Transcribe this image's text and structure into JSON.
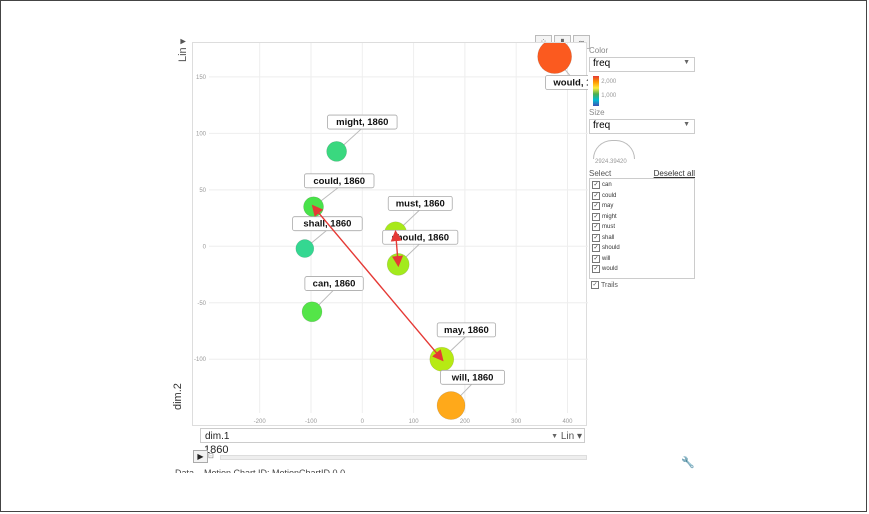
{
  "y_axis": {
    "label": "dim.2",
    "scale_label": "Lin",
    "ticks": [
      "150",
      "100",
      "50",
      "0",
      "-50",
      "-100"
    ]
  },
  "x_axis": {
    "label": "dim.1",
    "scale_label": "Lin",
    "ticks": [
      "-200",
      "-100",
      "0",
      "100",
      "200",
      "300",
      "400"
    ]
  },
  "time": {
    "year": "1860"
  },
  "chart_icons": [
    "scatter-icon",
    "bar-icon",
    "line-icon"
  ],
  "sidebar": {
    "color_header": "Color",
    "color_value": "freq",
    "color_scale": [
      "2,000",
      "1,000"
    ],
    "size_header": "Size",
    "size_value": "freq",
    "size_value_label": "2924.39420",
    "select_header": "Select",
    "deselect_all": "Deselect all",
    "items": [
      "can",
      "could",
      "may",
      "might",
      "must",
      "shall",
      "should",
      "will",
      "would"
    ],
    "trails_label": "Trails"
  },
  "bottom_text": "Data... Motion Chart ID: MotionChartID.0.0",
  "chart_data": {
    "type": "scatter",
    "xlabel": "dim.1",
    "ylabel": "dim.2",
    "year": "1860",
    "points": [
      {
        "label": "would, 1860",
        "x": 375,
        "y": 168,
        "freq": 2000,
        "color": "#fb5a1f",
        "r": 17
      },
      {
        "label": "might, 1860",
        "x": -50,
        "y": 84,
        "freq": 700,
        "color": "#3ad87f",
        "r": 10
      },
      {
        "label": "could, 1860",
        "x": -95,
        "y": 35,
        "freq": 850,
        "color": "#49e24a",
        "r": 10
      },
      {
        "label": "must, 1860",
        "x": 65,
        "y": 12,
        "freq": 1050,
        "color": "#a8e91a",
        "r": 11
      },
      {
        "label": "shall, 1860",
        "x": -112,
        "y": -2,
        "freq": 650,
        "color": "#34d791",
        "r": 9
      },
      {
        "label": "should, 1860",
        "x": 70,
        "y": -16,
        "freq": 1000,
        "color": "#a3ea1d",
        "r": 11
      },
      {
        "label": "can, 1860",
        "x": -98,
        "y": -58,
        "freq": 900,
        "color": "#54e548",
        "r": 10
      },
      {
        "label": "may, 1860",
        "x": 155,
        "y": -100,
        "freq": 1100,
        "color": "#b7ea13",
        "r": 12
      },
      {
        "label": "will, 1860",
        "x": 173,
        "y": -141,
        "freq": 1600,
        "color": "#ffa91a",
        "r": 14
      }
    ],
    "label_positions": [
      {
        "ax": 425,
        "ay": 145
      },
      {
        "ax": 0,
        "ay": 110
      },
      {
        "ax": -45,
        "ay": 58
      },
      {
        "ax": 113,
        "ay": 38
      },
      {
        "ax": -68,
        "ay": 20
      },
      {
        "ax": 113,
        "ay": 8
      },
      {
        "ax": -55,
        "ay": -33
      },
      {
        "ax": 203,
        "ay": -74
      },
      {
        "ax": 215,
        "ay": -116
      }
    ],
    "arrows": [
      {
        "from": [
          -95,
          35
        ],
        "to": [
          155,
          -100
        ],
        "color": "#e53935"
      },
      {
        "from": [
          65,
          12
        ],
        "to": [
          70,
          -16
        ],
        "color": "#e53935"
      }
    ],
    "xlim": [
      -330,
      440
    ],
    "ylim": [
      -160,
      180
    ]
  }
}
